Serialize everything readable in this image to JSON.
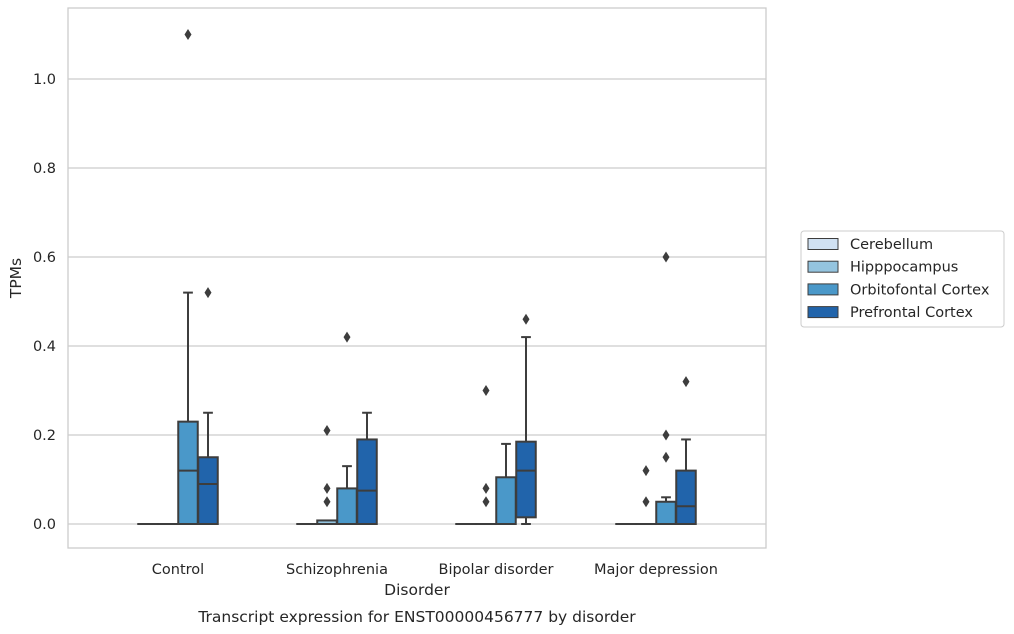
{
  "chart_data": {
    "type": "boxplot",
    "caption": "Transcript expression for ENST00000456777 by disorder",
    "xlabel": "Disorder",
    "ylabel": "TPMs",
    "ylim": [
      -0.055,
      1.16
    ],
    "yticks": [
      0.0,
      0.2,
      0.4,
      0.6,
      0.8,
      1.0
    ],
    "ytick_labels": [
      "0.0",
      "0.2",
      "0.4",
      "0.6",
      "0.8",
      "1.0"
    ],
    "grid": true,
    "legend_position": "right",
    "categories": [
      "Control",
      "Schizophrenia",
      "Bipolar disorder",
      "Major depression"
    ],
    "series": [
      {
        "name": "Cerebellum",
        "color": "#d0e1f2",
        "boxes": [
          {
            "whislo": 0,
            "q1": 0,
            "med": 0,
            "q3": 0,
            "whishi": 0,
            "fliers": []
          },
          {
            "whislo": 0,
            "q1": 0,
            "med": 0,
            "q3": 0,
            "whishi": 0,
            "fliers": []
          },
          {
            "whislo": 0,
            "q1": 0,
            "med": 0,
            "q3": 0,
            "whishi": 0,
            "fliers": []
          },
          {
            "whislo": 0,
            "q1": 0,
            "med": 0,
            "q3": 0,
            "whishi": 0,
            "fliers": []
          }
        ]
      },
      {
        "name": "Hipppocampus",
        "color": "#94c4df",
        "boxes": [
          {
            "whislo": 0,
            "q1": 0,
            "med": 0,
            "q3": 0,
            "whishi": 0,
            "fliers": []
          },
          {
            "whislo": 0,
            "q1": 0,
            "med": 0,
            "q3": 0.008,
            "whishi": 0.008,
            "fliers": [
              0.05,
              0.08,
              0.21
            ]
          },
          {
            "whislo": 0,
            "q1": 0,
            "med": 0,
            "q3": 0,
            "whishi": 0,
            "fliers": [
              0.05,
              0.08,
              0.3
            ]
          },
          {
            "whislo": 0,
            "q1": 0,
            "med": 0,
            "q3": 0,
            "whishi": 0,
            "fliers": [
              0.05,
              0.12
            ]
          }
        ]
      },
      {
        "name": "Orbitofontal Cortex",
        "color": "#4a98c9",
        "boxes": [
          {
            "whislo": 0,
            "q1": 0,
            "med": 0.12,
            "q3": 0.23,
            "whishi": 0.52,
            "fliers": [
              1.1
            ]
          },
          {
            "whislo": 0,
            "q1": 0,
            "med": 0,
            "q3": 0.08,
            "whishi": 0.13,
            "fliers": [
              0.42
            ]
          },
          {
            "whislo": 0,
            "q1": 0,
            "med": 0,
            "q3": 0.105,
            "whishi": 0.18,
            "fliers": []
          },
          {
            "whislo": 0,
            "q1": 0,
            "med": 0,
            "q3": 0.05,
            "whishi": 0.06,
            "fliers": [
              0.15,
              0.2,
              0.6
            ]
          }
        ]
      },
      {
        "name": "Prefrontal Cortex",
        "color": "#2164ab",
        "boxes": [
          {
            "whislo": 0,
            "q1": 0,
            "med": 0.09,
            "q3": 0.15,
            "whishi": 0.25,
            "fliers": [
              0.52
            ]
          },
          {
            "whislo": 0,
            "q1": 0,
            "med": 0.075,
            "q3": 0.19,
            "whishi": 0.25,
            "fliers": []
          },
          {
            "whislo": 0,
            "q1": 0.015,
            "med": 0.12,
            "q3": 0.185,
            "whishi": 0.42,
            "fliers": [
              0.46
            ]
          },
          {
            "whislo": 0,
            "q1": 0,
            "med": 0.04,
            "q3": 0.12,
            "whishi": 0.19,
            "fliers": [
              0.32
            ]
          }
        ]
      }
    ]
  }
}
